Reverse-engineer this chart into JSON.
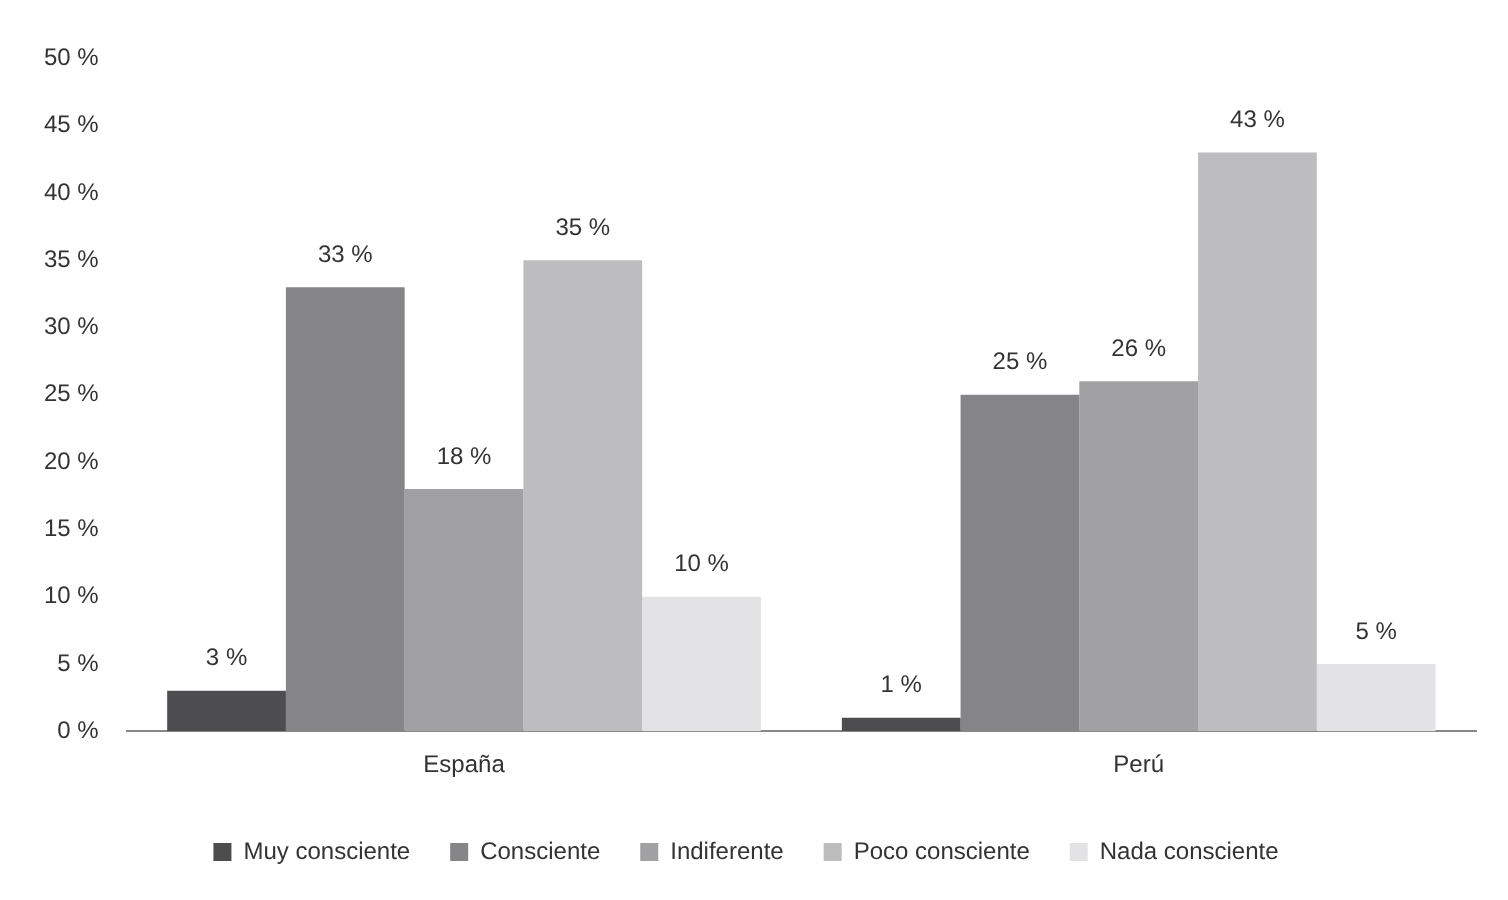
{
  "chart_data": {
    "type": "bar",
    "categories": [
      "España",
      "Perú"
    ],
    "series": [
      {
        "name": "Muy consciente",
        "color": "#4d4d4f",
        "values": [
          3,
          1
        ],
        "value_labels": [
          "3 %",
          "1 %"
        ]
      },
      {
        "name": "Consciente",
        "color": "#858588",
        "values": [
          33,
          25
        ],
        "value_labels": [
          "33 %",
          "25 %"
        ]
      },
      {
        "name": "Indiferente",
        "color": "#a1a1a4",
        "values": [
          18,
          26
        ],
        "value_labels": [
          "18 %",
          "26 %"
        ]
      },
      {
        "name": "Poco consciente",
        "color": "#bdbdc0",
        "values": [
          35,
          43
        ],
        "value_labels": [
          "35 %",
          "43 %"
        ]
      },
      {
        "name": "Nada consciente",
        "color": "#e3e3e5",
        "values": [
          10,
          5
        ],
        "value_labels": [
          "10 %",
          "5 %"
        ]
      }
    ],
    "ylim": [
      0,
      50
    ],
    "yticks": [
      {
        "value": 0,
        "label": "0 %"
      },
      {
        "value": 5,
        "label": "5 %"
      },
      {
        "value": 10,
        "label": "10 %"
      },
      {
        "value": 15,
        "label": "15 %"
      },
      {
        "value": 20,
        "label": "20 %"
      },
      {
        "value": 25,
        "label": "25 %"
      },
      {
        "value": 30,
        "label": "30 %"
      },
      {
        "value": 35,
        "label": "35 %"
      },
      {
        "value": 40,
        "label": "40 %"
      },
      {
        "value": 45,
        "label": "45 %"
      },
      {
        "value": 50,
        "label": "50 %"
      }
    ],
    "grid": false,
    "legend": "bottom"
  }
}
